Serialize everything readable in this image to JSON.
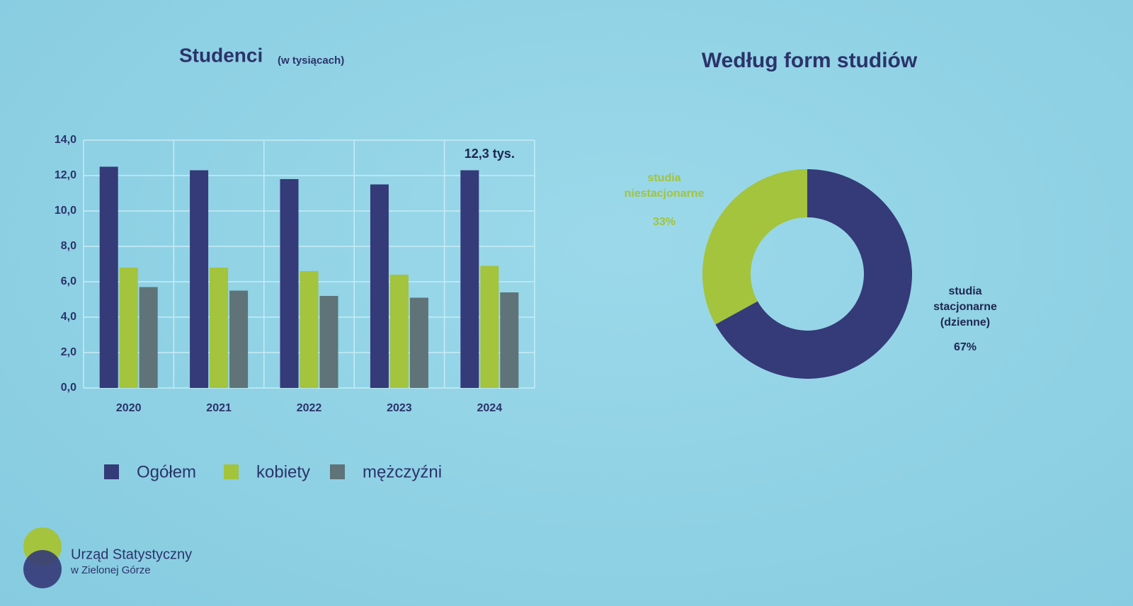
{
  "chart_data": [
    {
      "type": "bar",
      "title": "Studenci",
      "subtitle": "(w tysiącach)",
      "categories": [
        "2020",
        "2021",
        "2022",
        "2023",
        "2024"
      ],
      "series": [
        {
          "name": "Ogółem",
          "color": "#353a78",
          "values": [
            12.5,
            12.3,
            11.8,
            11.5,
            12.3
          ],
          "value_labels": [
            null,
            null,
            null,
            null,
            "12,3 tys."
          ]
        },
        {
          "name": "kobiety",
          "color": "#a3c43c",
          "values": [
            6.8,
            6.8,
            6.6,
            6.4,
            6.9
          ]
        },
        {
          "name": "mężczyźni",
          "color": "#5f7378",
          "values": [
            5.7,
            5.5,
            5.2,
            5.1,
            5.4
          ]
        }
      ],
      "ylim": [
        0,
        14
      ],
      "yticks": [
        {
          "value": 0,
          "label": "0,0"
        },
        {
          "value": 2,
          "label": "2,0"
        },
        {
          "value": 4,
          "label": "4,0"
        },
        {
          "value": 6,
          "label": "6,0"
        },
        {
          "value": 8,
          "label": "8,0"
        },
        {
          "value": 10,
          "label": "10,0"
        },
        {
          "value": 12,
          "label": "12,0"
        },
        {
          "value": 14,
          "label": "14,0"
        }
      ],
      "grid": true,
      "legend": "bottom"
    },
    {
      "type": "donut",
      "title": "Według form studiów",
      "categories": [
        "studia niestacjonarne",
        "studia stacjonarne (dzienne)"
      ],
      "values": [
        33,
        67
      ],
      "value_labels": [
        "33%",
        "67%"
      ],
      "colors": [
        "#a3c43c",
        "#353a78"
      ]
    }
  ],
  "footer": {
    "logo_line1": "Urząd Statystyczny",
    "logo_line2": "w Zielonej Górze"
  }
}
